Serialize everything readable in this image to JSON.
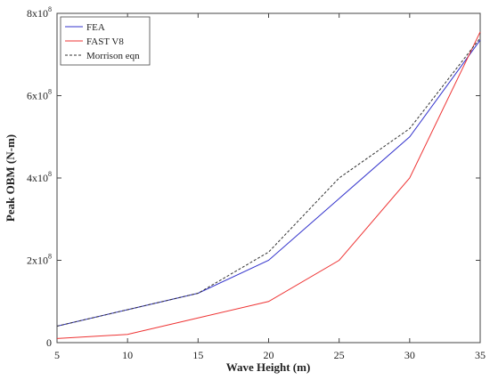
{
  "chart_data": {
    "type": "line",
    "xlabel": "Wave Height (m)",
    "ylabel": "Peak OBM (N-m)",
    "xlim": [
      5,
      35
    ],
    "ylim": [
      0,
      800000000
    ],
    "x_ticks": [
      "5",
      "10",
      "15",
      "20",
      "25",
      "30",
      "35"
    ],
    "y_ticks": [
      {
        "value": 0,
        "mantissa": "0",
        "exp": ""
      },
      {
        "value": 200000000,
        "mantissa": "2x10",
        "exp": "8"
      },
      {
        "value": 400000000,
        "mantissa": "4x10",
        "exp": "8"
      },
      {
        "value": 600000000,
        "mantissa": "6x10",
        "exp": "8"
      },
      {
        "value": 800000000,
        "mantissa": "8x10",
        "exp": "8"
      }
    ],
    "x": [
      5,
      10,
      15,
      20,
      25,
      30,
      35
    ],
    "series": [
      {
        "name": "FEA",
        "color": "#3333cc",
        "dash": "",
        "values": [
          40000000,
          80000000,
          120000000,
          200000000,
          350000000,
          500000000,
          735000000
        ]
      },
      {
        "name": "FAST V8",
        "color": "#ee3333",
        "dash": "",
        "values": [
          10000000,
          20000000,
          60000000,
          100000000,
          200000000,
          400000000,
          755000000
        ]
      },
      {
        "name": "Morrison eqn",
        "color": "#333333",
        "dash": "3,2",
        "values": [
          40000000,
          80000000,
          120000000,
          220000000,
          400000000,
          520000000,
          740000000
        ]
      }
    ],
    "grid": false,
    "legend_position": "top-left"
  }
}
